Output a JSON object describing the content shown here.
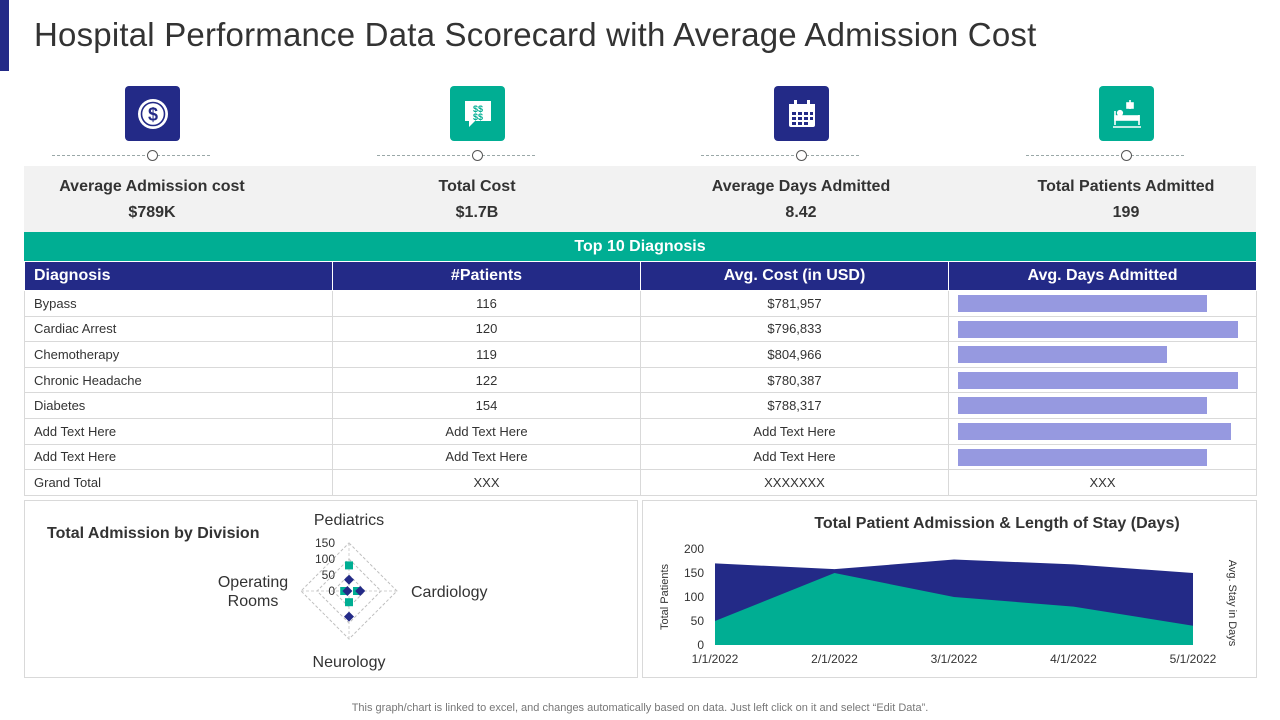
{
  "title": "Hospital Performance Data Scorecard with Average Admission Cost",
  "colors": {
    "navy": "#232A87",
    "teal": "#00AE93",
    "bar": "#9699E0"
  },
  "kpis": [
    {
      "label": "Average Admission cost",
      "value": "$789K",
      "icon": "dollar-coin-icon"
    },
    {
      "label": "Total Cost",
      "value": "$1.7B",
      "icon": "money-chat-icon"
    },
    {
      "label": "Average Days Admitted",
      "value": "8.42",
      "icon": "calendar-icon"
    },
    {
      "label": "Total Patients Admitted",
      "value": "199",
      "icon": "hospital-bed-icon"
    }
  ],
  "table": {
    "title": "Top 10 Diagnosis",
    "headers": [
      "Diagnosis",
      "#Patients",
      "Avg. Cost (in USD)",
      "Avg. Days Admitted"
    ],
    "rows": [
      {
        "diagnosis": "Bypass",
        "patients": "116",
        "cost": "$781,957",
        "days": 0.89
      },
      {
        "diagnosis": "Cardiac Arrest",
        "patients": "120",
        "cost": "$796,833",
        "days": 1.0
      },
      {
        "diagnosis": "Chemotherapy",
        "patients": "119",
        "cost": "$804,966",
        "days": 0.745
      },
      {
        "diagnosis": "Chronic Headache",
        "patients": "122",
        "cost": "$780,387",
        "days": 1.0
      },
      {
        "diagnosis": "Diabetes",
        "patients": "154",
        "cost": "$788,317",
        "days": 0.89
      },
      {
        "diagnosis": "Add Text Here",
        "patients": "Add Text Here",
        "cost": "Add Text Here",
        "days": 0.975
      },
      {
        "diagnosis": "Add Text Here",
        "patients": "Add Text Here",
        "cost": "Add Text Here",
        "days": 0.89
      }
    ],
    "total": {
      "diagnosis": "Grand Total",
      "patients": "XXX",
      "cost": "XXXXXXX",
      "days": "XXX"
    }
  },
  "chart_data": [
    {
      "type": "radar",
      "title": "Total Admission by Division",
      "axes": [
        "Pediatrics",
        "Cardiology",
        "Neurology",
        "Operating\nRooms"
      ],
      "ticks": [
        "150",
        "100",
        "50",
        "0"
      ],
      "rmax": 150,
      "series": [
        {
          "values": [
            80,
            25,
            35,
            15
          ],
          "color": "#00AE93",
          "marker": "square"
        },
        {
          "values": [
            35,
            35,
            80,
            5
          ],
          "color": "#232A87",
          "marker": "diamond"
        }
      ]
    },
    {
      "type": "area",
      "title": "Total Patient Admission & Length of Stay (Days)",
      "ylabel": "Total Patients",
      "y2label": "Avg. Stay in Days",
      "x": [
        "1/1/2022",
        "2/1/2022",
        "3/1/2022",
        "4/1/2022",
        "5/1/2022"
      ],
      "yticks": [
        0,
        50,
        100,
        150,
        200
      ],
      "ylim": [
        0,
        200
      ],
      "series": [
        {
          "values": [
            170,
            158,
            178,
            168,
            150
          ],
          "color": "#232A87"
        },
        {
          "values": [
            50,
            150,
            100,
            80,
            40
          ],
          "color": "#00AE93"
        }
      ]
    }
  ],
  "footnote": "This graph/chart is linked to excel, and changes automatically based on data. Just left click on it and select “Edit Data”."
}
